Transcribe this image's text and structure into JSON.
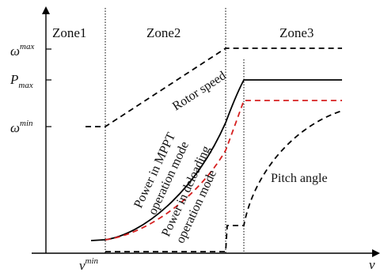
{
  "zones": {
    "zone1": "Zone1",
    "zone2": "Zone2",
    "zone3": "Zone3"
  },
  "y_axis": {
    "omega_max": {
      "base": "ω",
      "sup": "max"
    },
    "p_max": {
      "base": "P",
      "sub": "max"
    },
    "omega_min": {
      "base": "ω",
      "sup": "min"
    }
  },
  "x_axis": {
    "v_min": {
      "base": "v",
      "sup": "min"
    },
    "v": "v"
  },
  "curves": {
    "rotor_speed": "Rotor speed",
    "power_mppt_line1": "Power in MPPT",
    "power_mppt_line2": "operation mode",
    "power_deload_line1": "Power in deloading",
    "power_deload_line2": "operation mode",
    "pitch_angle": "Pitch angle"
  },
  "colors": {
    "mppt_power": "#000000",
    "deload_power": "#d62020",
    "rotor_speed": "#000000",
    "pitch_angle": "#000000"
  }
}
